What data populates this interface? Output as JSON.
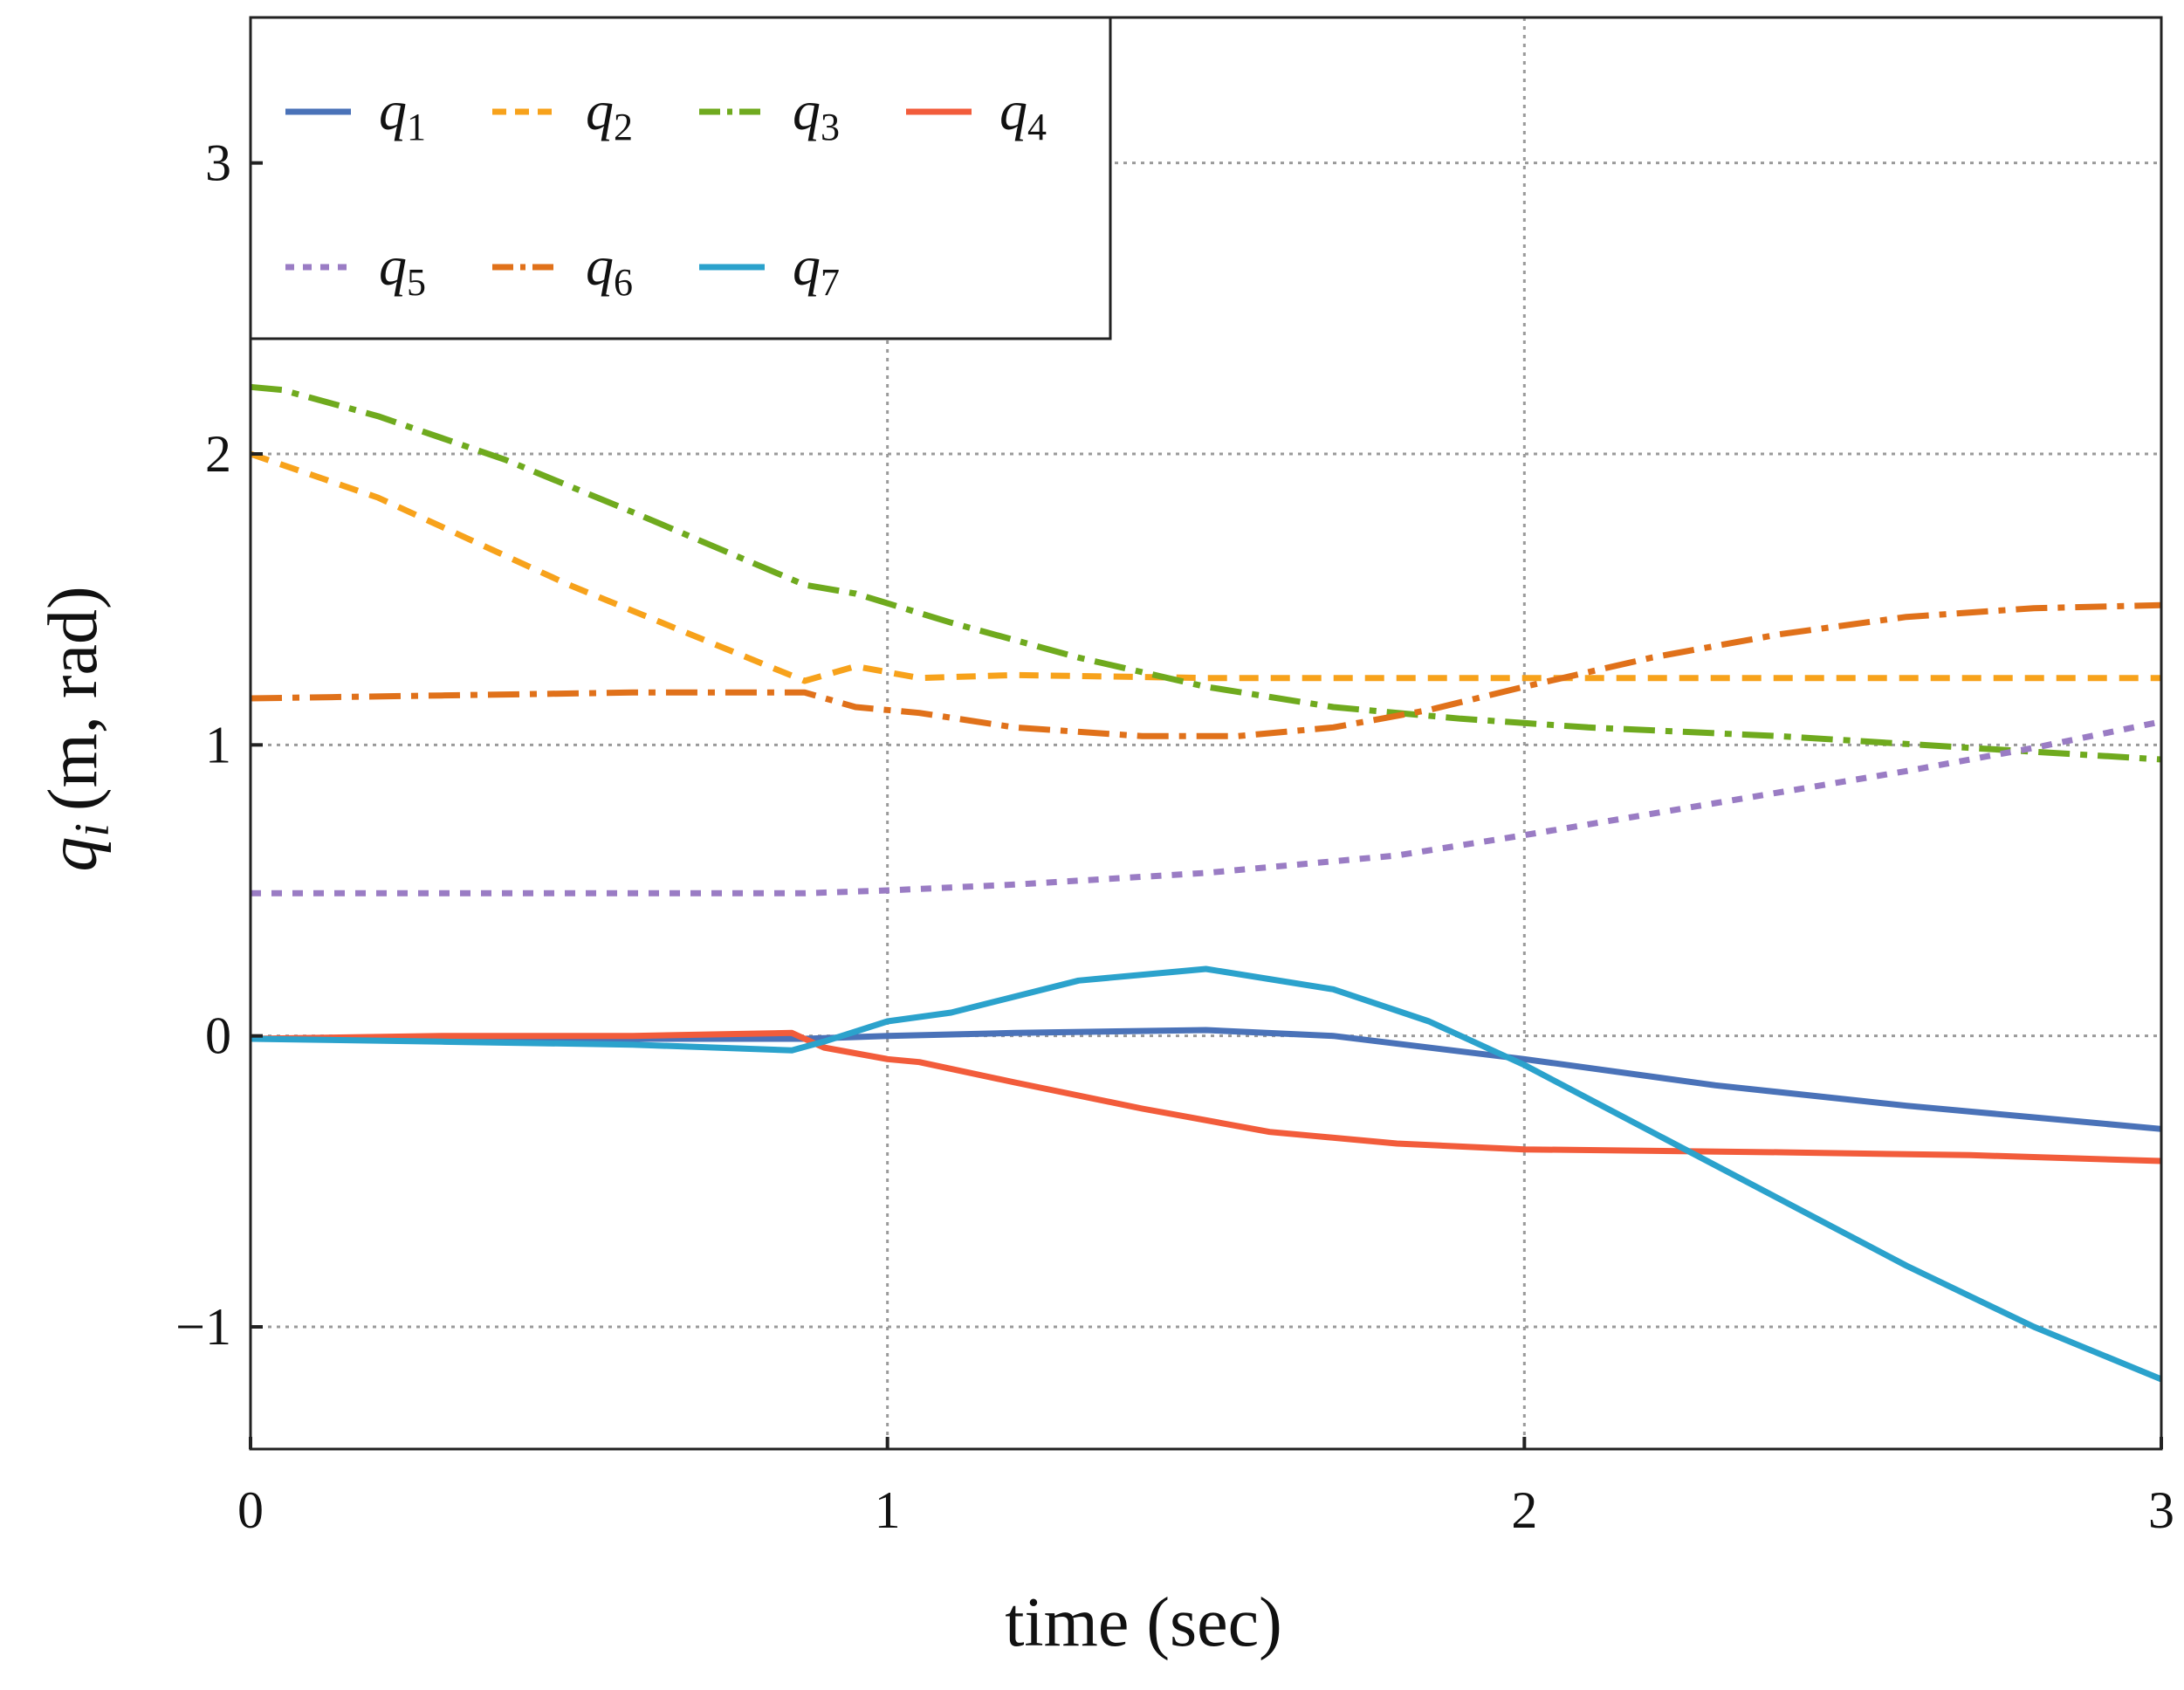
{
  "chart_data": {
    "type": "line",
    "title": "",
    "xlabel": "time (sec)",
    "ylabel_var": "q",
    "ylabel_sub": "i",
    "ylabel_units": "(m, rad)",
    "xlim": [
      0,
      3
    ],
    "ylim": [
      -1.42,
      3.5
    ],
    "xticks": [
      0,
      1,
      2,
      3
    ],
    "yticks": [
      -1,
      0,
      1,
      2,
      3
    ],
    "xtick_labels": [
      "0",
      "1",
      "2",
      "3"
    ],
    "ytick_labels": [
      "−1",
      "0",
      "1",
      "2",
      "3"
    ],
    "grid": true,
    "legend_position": "top-left",
    "series": [
      {
        "name": "q",
        "sub": "1",
        "color": "#4A72B8",
        "style": "solid",
        "x": [
          0,
          0.3,
          0.6,
          0.87,
          1.0,
          1.2,
          1.5,
          1.7,
          2.0,
          2.3,
          2.6,
          2.8,
          3.0
        ],
        "y": [
          -0.01,
          -0.01,
          -0.01,
          -0.01,
          0.0,
          0.01,
          0.02,
          0.0,
          -0.08,
          -0.17,
          -0.24,
          -0.28,
          -0.32
        ]
      },
      {
        "name": "q",
        "sub": "2",
        "color": "#F7A21B",
        "style": "dashed",
        "x": [
          0,
          0.2,
          0.5,
          0.87,
          0.95,
          1.05,
          1.2,
          1.5,
          2.0,
          2.5,
          3.0
        ],
        "y": [
          2.0,
          1.85,
          1.55,
          1.22,
          1.27,
          1.23,
          1.24,
          1.23,
          1.23,
          1.23,
          1.23
        ]
      },
      {
        "name": "q",
        "sub": "3",
        "color": "#6FAA1E",
        "style": "dashdot",
        "x": [
          0,
          0.05,
          0.2,
          0.4,
          0.6,
          0.87,
          0.95,
          1.1,
          1.3,
          1.5,
          1.7,
          1.9,
          2.1,
          2.4,
          2.7,
          3.0
        ],
        "y": [
          2.23,
          2.22,
          2.13,
          1.98,
          1.8,
          1.55,
          1.52,
          1.42,
          1.3,
          1.2,
          1.13,
          1.09,
          1.06,
          1.03,
          0.99,
          0.95
        ]
      },
      {
        "name": "q",
        "sub": "4",
        "color": "#F25C3B",
        "style": "solid",
        "x": [
          0,
          0.3,
          0.6,
          0.85,
          0.9,
          1.0,
          1.05,
          1.2,
          1.4,
          1.6,
          1.8,
          2.0,
          2.4,
          2.7,
          3.0
        ],
        "y": [
          -0.01,
          0.0,
          0.0,
          0.01,
          -0.04,
          -0.08,
          -0.09,
          -0.16,
          -0.25,
          -0.33,
          -0.37,
          -0.39,
          -0.4,
          -0.41,
          -0.43
        ]
      },
      {
        "name": "q",
        "sub": "5",
        "color": "#9A7CC4",
        "style": "dotted",
        "x": [
          0,
          0.3,
          0.6,
          0.87,
          1.0,
          1.2,
          1.5,
          1.8,
          2.0,
          2.3,
          2.6,
          2.8,
          3.0
        ],
        "y": [
          0.49,
          0.49,
          0.49,
          0.49,
          0.5,
          0.52,
          0.56,
          0.62,
          0.69,
          0.8,
          0.91,
          0.99,
          1.08
        ]
      },
      {
        "name": "q",
        "sub": "6",
        "color": "#E0711A",
        "style": "dashdot",
        "x": [
          0,
          0.3,
          0.6,
          0.87,
          0.95,
          1.05,
          1.2,
          1.4,
          1.55,
          1.7,
          1.85,
          2.0,
          2.2,
          2.4,
          2.6,
          2.8,
          3.0
        ],
        "y": [
          1.16,
          1.17,
          1.18,
          1.18,
          1.13,
          1.11,
          1.06,
          1.03,
          1.03,
          1.06,
          1.12,
          1.2,
          1.3,
          1.38,
          1.44,
          1.47,
          1.48
        ]
      },
      {
        "name": "q",
        "sub": "7",
        "color": "#2BA2CC",
        "style": "solid",
        "x": [
          0,
          0.3,
          0.6,
          0.85,
          0.9,
          1.0,
          1.1,
          1.3,
          1.5,
          1.7,
          1.85,
          2.0,
          2.2,
          2.4,
          2.6,
          2.8,
          3.0
        ],
        "y": [
          -0.01,
          -0.02,
          -0.03,
          -0.05,
          -0.02,
          0.05,
          0.08,
          0.19,
          0.23,
          0.16,
          0.05,
          -0.1,
          -0.33,
          -0.56,
          -0.79,
          -1.0,
          -1.18
        ]
      }
    ]
  }
}
